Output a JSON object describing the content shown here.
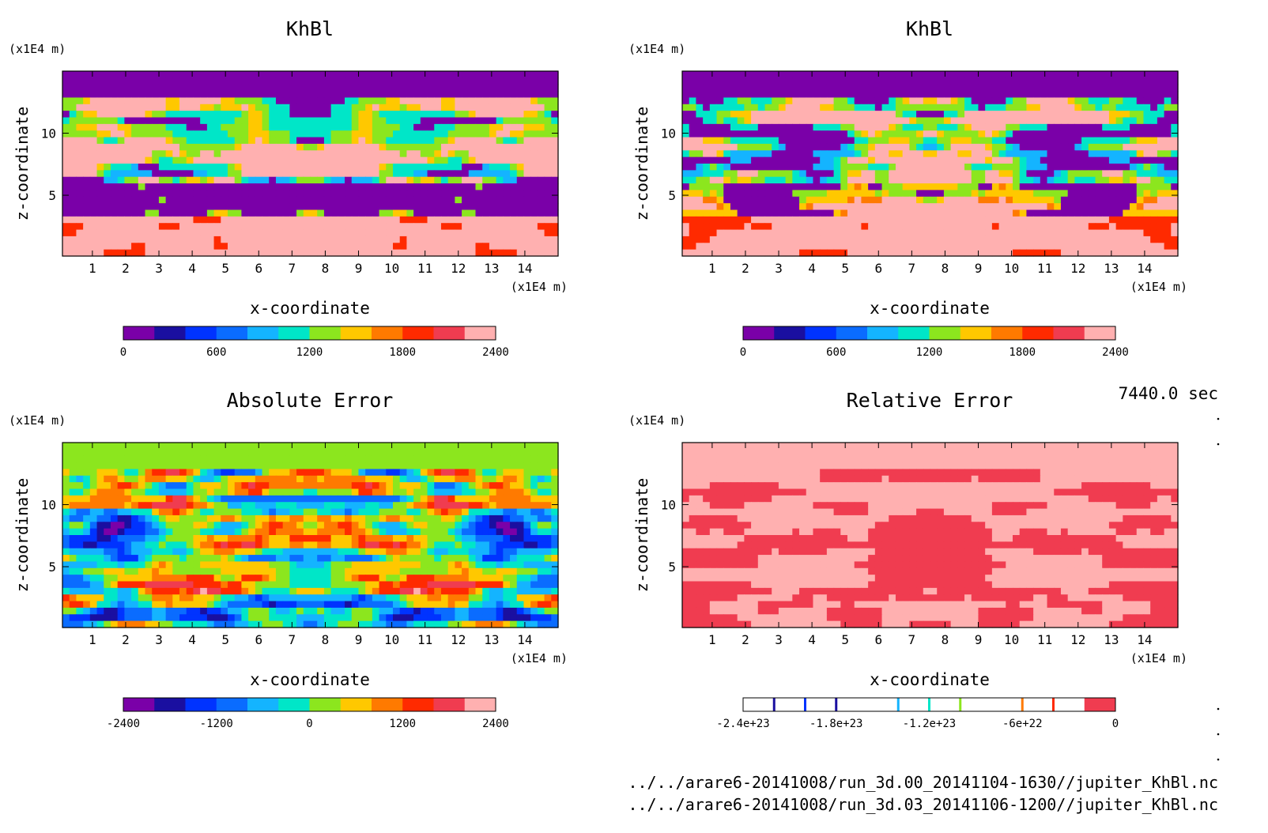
{
  "time_label": "7440.0 sec",
  "file_lines": [
    "../../arare6-20141008/run_3d.00_20141104-1630//jupiter_KhBl.nc",
    "../../arare6-20141008/run_3d.03_20141106-1200//jupiter_KhBl.nc"
  ],
  "palette": [
    "#7a00a8",
    "#1a0fa0",
    "#0033ff",
    "#0a6cff",
    "#14b4ff",
    "#00e6c8",
    "#8ce61e",
    "#ffc800",
    "#ff7a00",
    "#ff2a00",
    "#f03c50",
    "#ffb0b0"
  ],
  "chart_data": [
    {
      "type": "heatmap",
      "id": "tl",
      "title": "KhBl",
      "xlabel": "x-coordinate",
      "ylabel": "z-coordinate",
      "x_unit": "(x1E4 m)",
      "y_unit": "(x1E4 m)",
      "xlim": [
        0.1,
        15.0
      ],
      "ylim": [
        0.1,
        15.0
      ],
      "xticks": [
        "1",
        "2",
        "3",
        "4",
        "5",
        "6",
        "7",
        "8",
        "9",
        "10",
        "11",
        "12",
        "13",
        "14"
      ],
      "yticks": [
        "5",
        "10"
      ],
      "colorbar": {
        "min": 0,
        "max": 2400,
        "levels": 12,
        "tick_labels": [
          "0",
          "600",
          "1200",
          "1800",
          "2400"
        ]
      },
      "pattern": "A"
    },
    {
      "type": "heatmap",
      "id": "tr",
      "title": "KhBl",
      "xlabel": "x-coordinate",
      "ylabel": "z-coordinate",
      "x_unit": "(x1E4 m)",
      "y_unit": "(x1E4 m)",
      "xlim": [
        0.1,
        15.0
      ],
      "ylim": [
        0.1,
        15.0
      ],
      "xticks": [
        "1",
        "2",
        "3",
        "4",
        "5",
        "6",
        "7",
        "8",
        "9",
        "10",
        "11",
        "12",
        "13",
        "14"
      ],
      "yticks": [
        "5",
        "10"
      ],
      "colorbar": {
        "min": 0,
        "max": 2400,
        "levels": 12,
        "tick_labels": [
          "0",
          "600",
          "1200",
          "1800",
          "2400"
        ]
      },
      "pattern": "B"
    },
    {
      "type": "heatmap",
      "id": "bl",
      "title": "Absolute Error",
      "xlabel": "x-coordinate",
      "ylabel": "z-coordinate",
      "x_unit": "(x1E4 m)",
      "y_unit": "(x1E4 m)",
      "xlim": [
        0.1,
        15.0
      ],
      "ylim": [
        0.1,
        15.0
      ],
      "xticks": [
        "1",
        "2",
        "3",
        "4",
        "5",
        "6",
        "7",
        "8",
        "9",
        "10",
        "11",
        "12",
        "13",
        "14"
      ],
      "yticks": [
        "5",
        "10"
      ],
      "colorbar": {
        "min": -2400,
        "max": 2400,
        "levels": 12,
        "tick_labels": [
          "-2400",
          "-1200",
          "0",
          "1200",
          "2400"
        ]
      },
      "pattern": "C"
    },
    {
      "type": "heatmap",
      "id": "br",
      "title": "Relative Error",
      "xlabel": "x-coordinate",
      "ylabel": "z-coordinate",
      "x_unit": "(x1E4 m)",
      "y_unit": "(x1E4 m)",
      "xlim": [
        0.1,
        15.0
      ],
      "ylim": [
        0.1,
        15.0
      ],
      "xticks": [
        "1",
        "2",
        "3",
        "4",
        "5",
        "6",
        "7",
        "8",
        "9",
        "10",
        "11",
        "12",
        "13",
        "14"
      ],
      "yticks": [
        "5",
        "10"
      ],
      "colorbar": {
        "min": -2.4e+23,
        "max": 0,
        "levels": 12,
        "tick_labels": [
          "-2.4e+23",
          "-1.8e+23",
          "-1.2e+23",
          "-6e+22",
          "0"
        ]
      },
      "pattern": "D"
    }
  ]
}
